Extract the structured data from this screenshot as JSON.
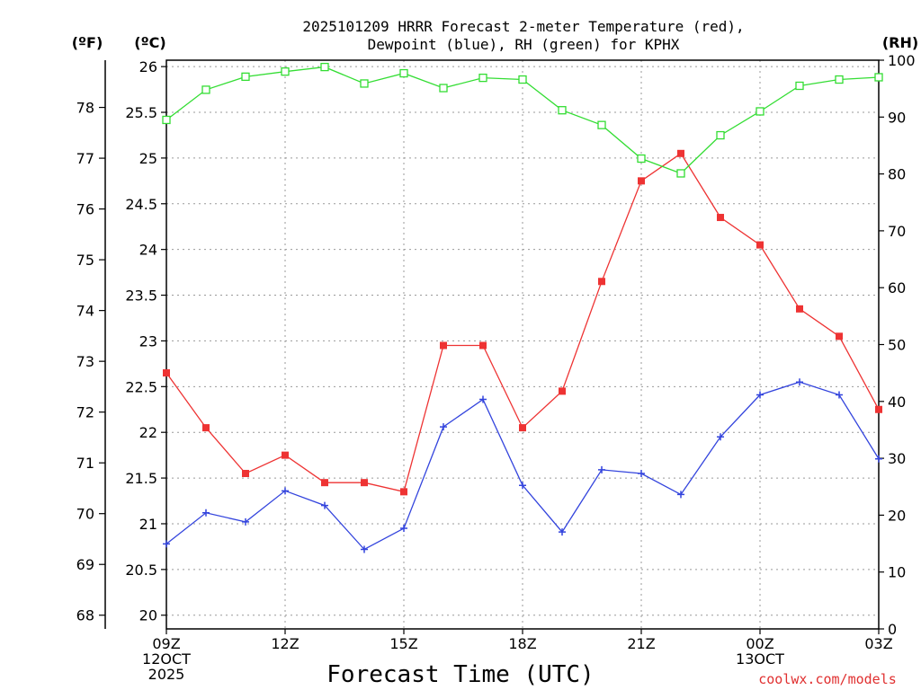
{
  "chart_data": {
    "type": "line",
    "title_line1": "2025101209 HRRR Forecast 2-meter Temperature (red),",
    "title_line2": "Dewpoint (blue), RH (green) for KPHX",
    "xlabel": "Forecast Time (UTC)",
    "unit_f": "(ºF)",
    "unit_c": "(ºC)",
    "unit_rh": "(RH)",
    "credit": "coolwx.com/models",
    "x": [
      0,
      1,
      2,
      3,
      4,
      5,
      6,
      7,
      8,
      9,
      10,
      11,
      12,
      13,
      14,
      15,
      16,
      17,
      18
    ],
    "x_ticks": [
      {
        "pos": 0,
        "lines": [
          "09Z",
          "12OCT",
          "2025"
        ]
      },
      {
        "pos": 3,
        "lines": [
          "12Z"
        ]
      },
      {
        "pos": 6,
        "lines": [
          "15Z"
        ]
      },
      {
        "pos": 9,
        "lines": [
          "18Z"
        ]
      },
      {
        "pos": 12,
        "lines": [
          "21Z"
        ]
      },
      {
        "pos": 15,
        "lines": [
          "00Z",
          "13OCT"
        ]
      },
      {
        "pos": 18,
        "lines": [
          "03Z"
        ]
      }
    ],
    "c_ticks": [
      "20",
      "20.5",
      "21",
      "21.5",
      "22",
      "22.5",
      "23",
      "23.5",
      "24",
      "24.5",
      "25",
      "25.5",
      "26"
    ],
    "f_ticks": [
      "68",
      "69",
      "70",
      "71",
      "72",
      "73",
      "74",
      "75",
      "76",
      "77",
      "78"
    ],
    "rh_ticks": [
      "0",
      "10",
      "20",
      "30",
      "40",
      "50",
      "60",
      "70",
      "80",
      "90",
      "100"
    ],
    "ylim_c": [
      19.85,
      26.07
    ],
    "ylim_f": [
      67.73,
      78.93
    ],
    "ylim_rh": [
      0,
      100
    ],
    "grid": true,
    "series": [
      {
        "name": "Temperature",
        "axis": "c",
        "color": "#ee3333",
        "marker": "filled-square",
        "values": [
          22.65,
          22.05,
          21.55,
          21.75,
          21.45,
          21.45,
          21.35,
          22.95,
          22.95,
          22.05,
          22.45,
          23.65,
          24.75,
          25.05,
          24.35,
          24.05,
          23.35,
          23.05,
          22.25
        ]
      },
      {
        "name": "Dewpoint",
        "axis": "c",
        "color": "#3344dd",
        "marker": "plus",
        "values": [
          20.78,
          21.12,
          21.02,
          21.36,
          21.2,
          20.72,
          20.95,
          22.06,
          22.36,
          21.42,
          20.91,
          21.59,
          21.55,
          21.32,
          21.95,
          22.41,
          22.55,
          22.41,
          21.71
        ]
      },
      {
        "name": "RH",
        "axis": "rh",
        "color": "#33dd33",
        "marker": "open-square",
        "values": [
          89.5,
          94.8,
          97.1,
          98.0,
          98.8,
          95.9,
          97.7,
          95.1,
          96.9,
          96.6,
          91.2,
          88.6,
          82.7,
          80.1,
          86.8,
          91.0,
          95.5,
          96.6,
          97.0
        ]
      }
    ]
  }
}
